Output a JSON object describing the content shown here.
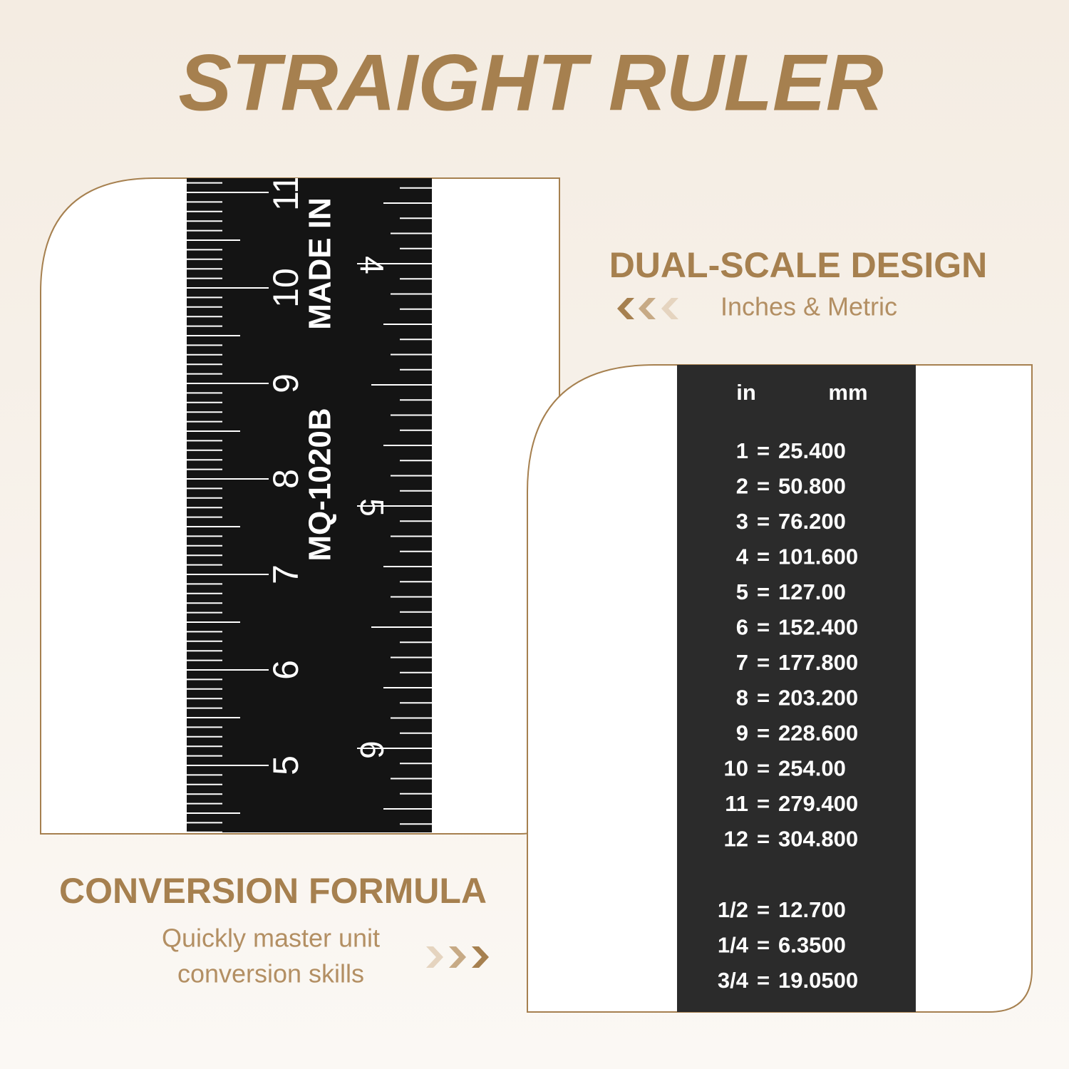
{
  "title": "STRAIGHT RULER",
  "dual_scale": {
    "heading": "DUAL-SCALE DESIGN",
    "subtitle": "Inches & Metric"
  },
  "conversion": {
    "heading": "CONVERSION FORMULA",
    "subtitle_lines": [
      "Quickly master unit",
      "conversion skills"
    ]
  },
  "ruler": {
    "cm_labels": [
      "11",
      "10",
      "9",
      "8",
      "7",
      "6",
      "5"
    ],
    "inch_labels": [
      "4",
      "5",
      "6"
    ],
    "imprint": [
      "MADE IN",
      "MQ-1020B"
    ]
  },
  "table": {
    "header": [
      "in",
      "mm"
    ],
    "rows": [
      [
        "1",
        "=",
        "25.400"
      ],
      [
        "2",
        "=",
        "50.800"
      ],
      [
        "3",
        "=",
        "76.200"
      ],
      [
        "4",
        "=",
        "101.600"
      ],
      [
        "5",
        "=",
        "127.00"
      ],
      [
        "6",
        "=",
        "152.400"
      ],
      [
        "7",
        "=",
        "177.800"
      ],
      [
        "8",
        "=",
        "203.200"
      ],
      [
        "9",
        "=",
        "228.600"
      ],
      [
        "10",
        "=",
        "254.00"
      ],
      [
        "11",
        "=",
        "279.400"
      ],
      [
        "12",
        "=",
        "304.800"
      ]
    ],
    "fraction_rows": [
      [
        "1/2",
        "=",
        "12.700"
      ],
      [
        "1/4",
        "=",
        "6.3500"
      ],
      [
        "3/4",
        "=",
        "19.0500"
      ]
    ]
  }
}
